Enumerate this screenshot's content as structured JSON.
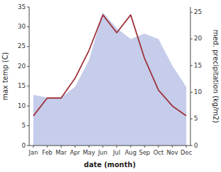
{
  "chart_data": {
    "type": "line",
    "categories": [
      "Jan",
      "Feb",
      "Mar",
      "Apr",
      "May",
      "Jun",
      "Jul",
      "Aug",
      "Sep",
      "Oct",
      "Nov",
      "Dec"
    ],
    "xlabel": "date (month)",
    "ylabel": "max temp (C)",
    "y2label": "med. precipitation (kg/m2)",
    "series": [
      {
        "type": "area",
        "axis": "y2",
        "color": "#c0c8e8",
        "values": [
          9.5,
          9.0,
          9.0,
          11.0,
          16.0,
          25.0,
          22.0,
          20.0,
          21.0,
          20.0,
          15.0,
          11.0
        ]
      },
      {
        "type": "line",
        "color": "#9e3039",
        "values": [
          7.5,
          12.0,
          12.0,
          17.0,
          24.0,
          33.0,
          28.5,
          33.0,
          22.0,
          14.0,
          10.0,
          7.5
        ]
      }
    ],
    "ylim": [
      0,
      35
    ],
    "yticks": [
      0,
      5,
      10,
      15,
      20,
      25,
      30,
      35
    ],
    "y2lim": [
      0,
      26
    ],
    "y2ticks": [
      0,
      5,
      10,
      15,
      20,
      25
    ],
    "grid": false
  }
}
